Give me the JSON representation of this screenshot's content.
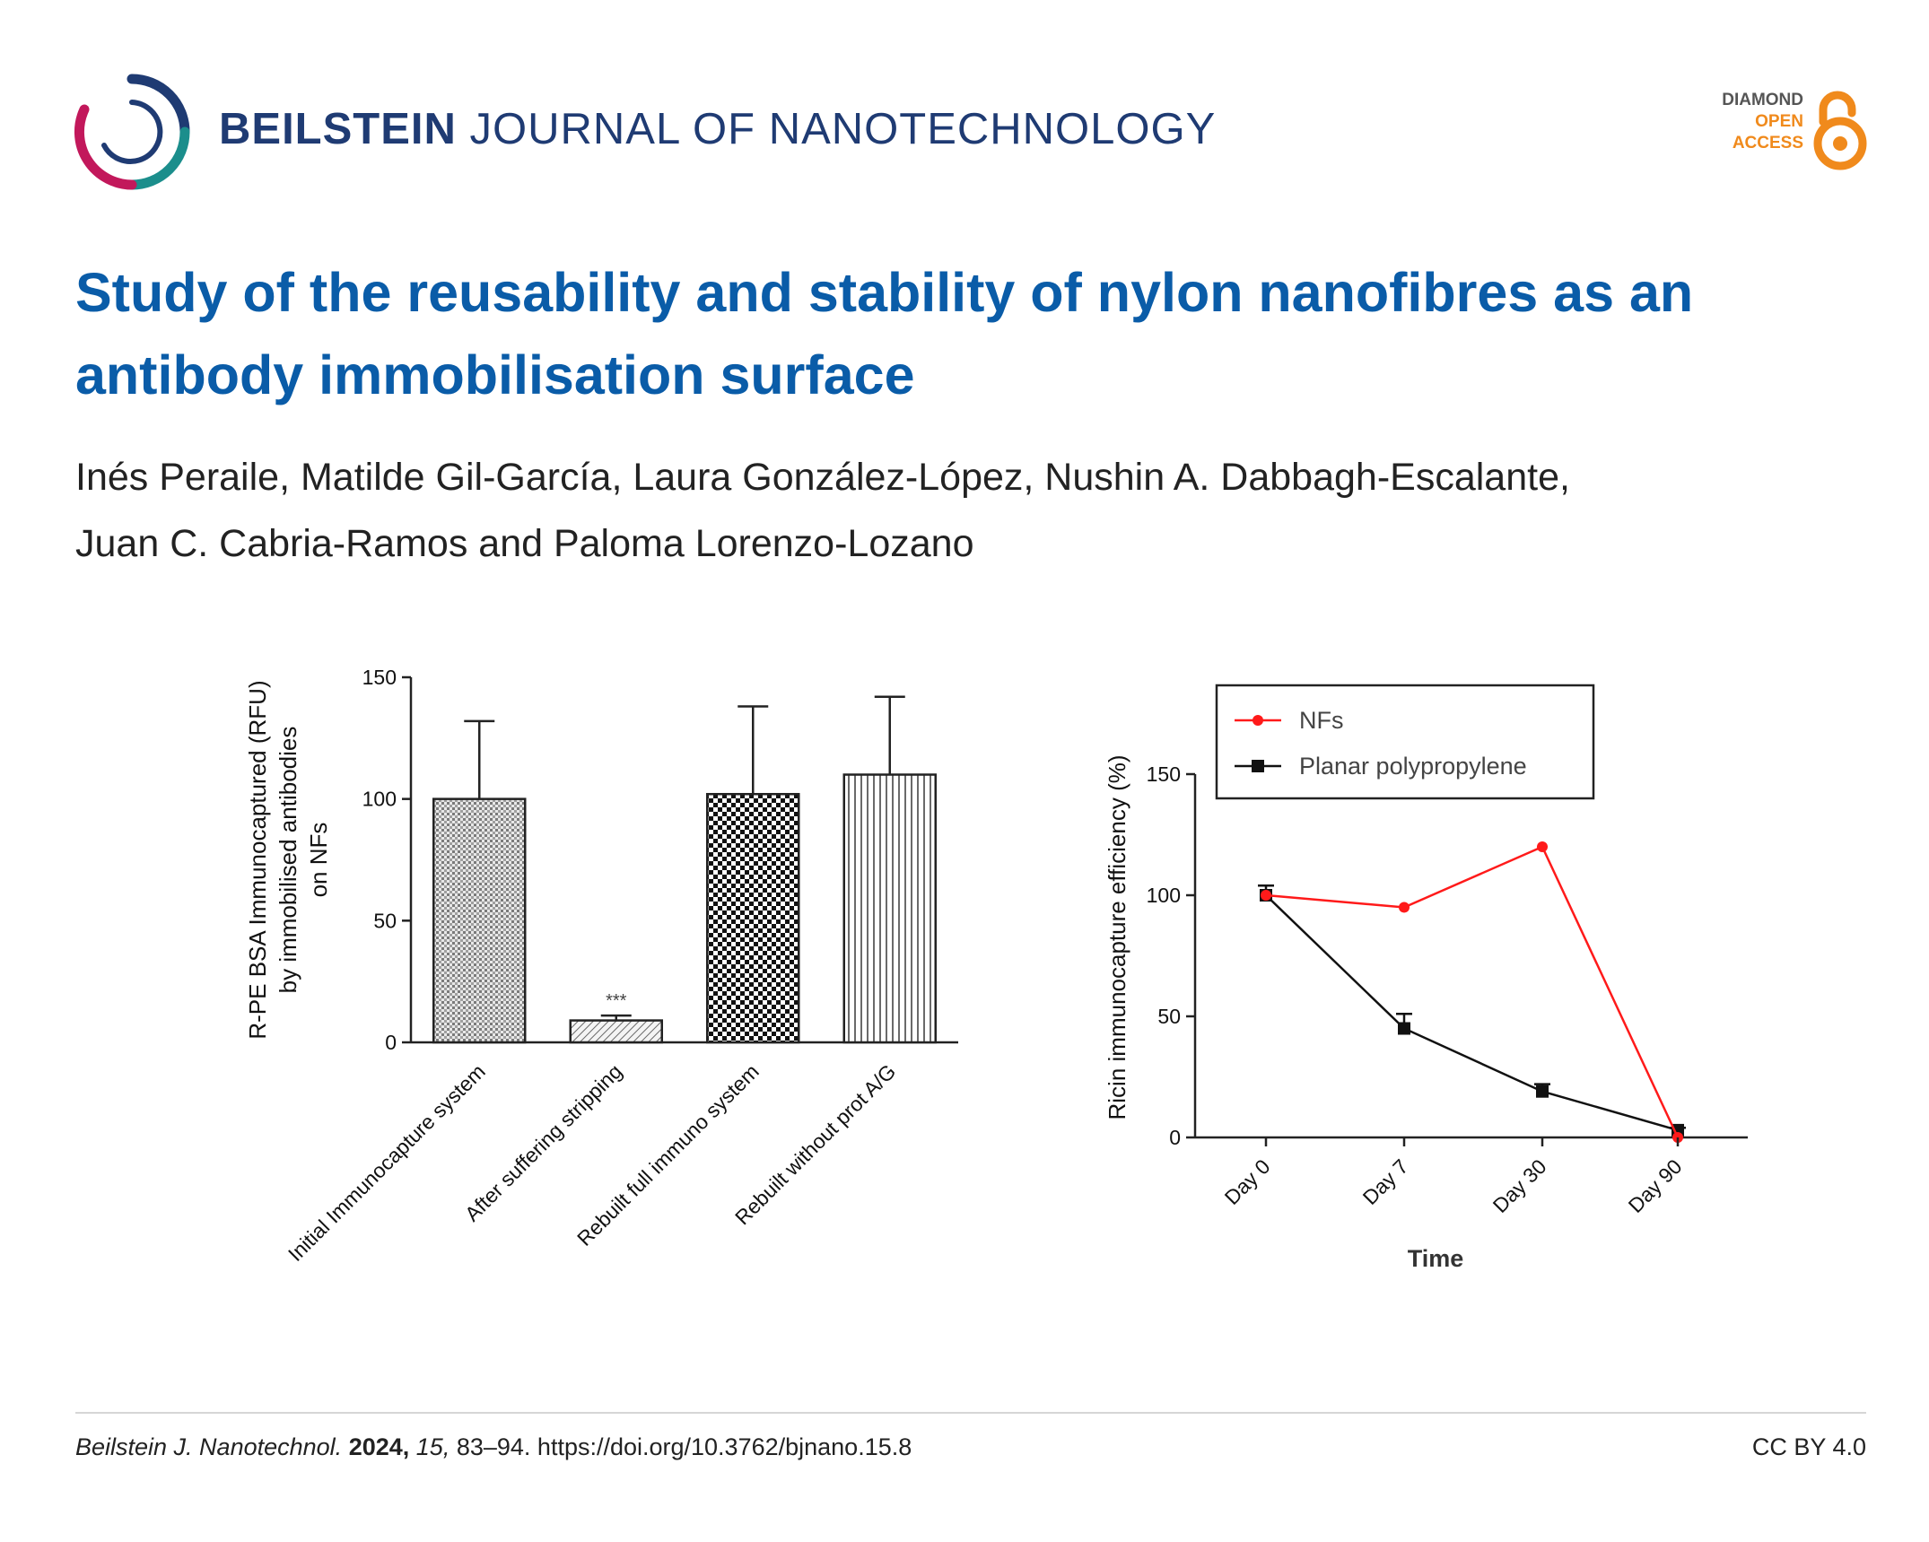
{
  "header": {
    "journal_bold": "BEILSTEIN",
    "journal_rest": " JOURNAL OF NANOTECHNOLOGY",
    "badge_line1": "DIAMOND",
    "badge_line2": "OPEN",
    "badge_line3": "ACCESS",
    "badge_icon": "open-access-lock-icon",
    "logo_icon": "beilstein-ring-logo-icon"
  },
  "article": {
    "title": "Study of the reusability and stability of nylon nanofibres as an antibody immobilisation surface",
    "authors_line1": "Inés Peraile, Matilde Gil-García, Laura González-López, Nushin A. Dabbagh-Escalante,",
    "authors_line2": "Juan C. Cabria-Ramos and Paloma Lorenzo-Lozano"
  },
  "chart_data": [
    {
      "type": "bar",
      "title": "",
      "ylabel_line1": "R-PE BSA Immunocaptured (RFU)",
      "ylabel_line2": "by  immobilised antibodies",
      "ylabel_line3": "on NFs",
      "xlabel": "",
      "ylim": [
        0,
        150
      ],
      "yticks": [
        0,
        50,
        100,
        150
      ],
      "ytick_labels": [
        "0",
        "50",
        "100",
        "150"
      ],
      "categories": [
        "Initial Immunocapture system",
        "After suffering stripping",
        "Rebuilt full immuno system",
        "Rebuilt without prot A/G"
      ],
      "values": [
        100,
        9,
        102,
        110
      ],
      "errors": [
        32,
        2,
        36,
        32
      ],
      "patterns": [
        "fine-dots",
        "diagonal-hatch",
        "checker",
        "vertical-lines"
      ],
      "annotation": "***",
      "annotation_category": 1,
      "grid": false
    },
    {
      "type": "line",
      "title": "",
      "xlabel": "Time",
      "ylabel": "Ricin immunocapture efficiency (%)",
      "ylim": [
        0,
        150
      ],
      "yticks": [
        0,
        50,
        100,
        150
      ],
      "ytick_labels": [
        "0",
        "50",
        "100",
        "150"
      ],
      "categories": [
        "Day 0",
        "Day 7",
        "Day 30",
        "Day 90"
      ],
      "grid": false,
      "legend_placement": "top",
      "series": [
        {
          "name": "NFs",
          "color": "#ff1a1a",
          "marker": "circle",
          "values": [
            100,
            95,
            120,
            0
          ],
          "errors": [
            0,
            0,
            0,
            0
          ]
        },
        {
          "name": "Planar polypropylene",
          "color": "#111111",
          "marker": "square",
          "values": [
            100,
            45,
            19,
            3
          ],
          "errors": [
            4,
            6,
            3,
            1
          ]
        }
      ]
    }
  ],
  "footer": {
    "journal_abbrev": "Beilstein J. Nanotechnol.",
    "year": "2024,",
    "volume": "15,",
    "pages_doi": "83–94. https://doi.org/10.3762/bjnano.15.8",
    "license": "CC BY 4.0"
  }
}
